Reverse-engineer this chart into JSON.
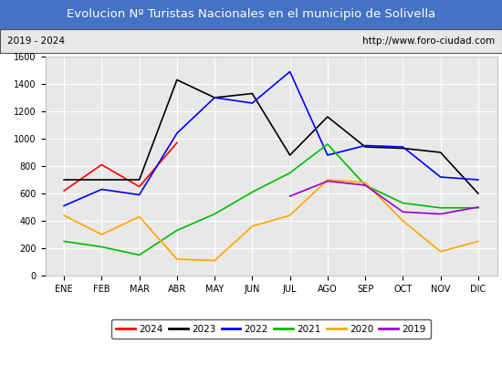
{
  "title": "Evolucion Nº Turistas Nacionales en el municipio de Solivella",
  "subtitle_left": "2019 - 2024",
  "subtitle_right": "http://www.foro-ciudad.com",
  "months": [
    "ENE",
    "FEB",
    "MAR",
    "ABR",
    "MAY",
    "JUN",
    "JUL",
    "AGO",
    "SEP",
    "OCT",
    "NOV",
    "DIC"
  ],
  "ylim": [
    0,
    1600
  ],
  "yticks": [
    0,
    200,
    400,
    600,
    800,
    1000,
    1200,
    1400,
    1600
  ],
  "series": {
    "2024": {
      "color": "#ff0000",
      "data": [
        620,
        810,
        650,
        970,
        null,
        null,
        null,
        null,
        null,
        null,
        null,
        null
      ]
    },
    "2023": {
      "color": "#000000",
      "data": [
        700,
        700,
        700,
        1430,
        1300,
        1330,
        880,
        1160,
        940,
        930,
        900,
        600
      ]
    },
    "2022": {
      "color": "#0000ff",
      "data": [
        510,
        630,
        590,
        1040,
        1300,
        1260,
        1490,
        880,
        950,
        940,
        720,
        700
      ]
    },
    "2021": {
      "color": "#00bb00",
      "data": [
        250,
        210,
        150,
        330,
        450,
        610,
        750,
        960,
        660,
        530,
        495,
        495
      ]
    },
    "2020": {
      "color": "#ffa500",
      "data": [
        440,
        300,
        430,
        120,
        110,
        360,
        440,
        700,
        680,
        400,
        175,
        250
      ]
    },
    "2019": {
      "color": "#9900cc",
      "data": [
        null,
        null,
        null,
        null,
        null,
        null,
        580,
        690,
        660,
        465,
        450,
        500
      ]
    }
  },
  "title_bg_color": "#4472c4",
  "title_color": "#ffffff",
  "subtitle_bg_color": "#e8e8e8",
  "plot_bg_color": "#e8e8e8",
  "grid_color": "#ffffff",
  "title_fontsize": 9.5,
  "subtitle_fontsize": 7.5,
  "tick_fontsize": 7,
  "legend_fontsize": 7.5
}
